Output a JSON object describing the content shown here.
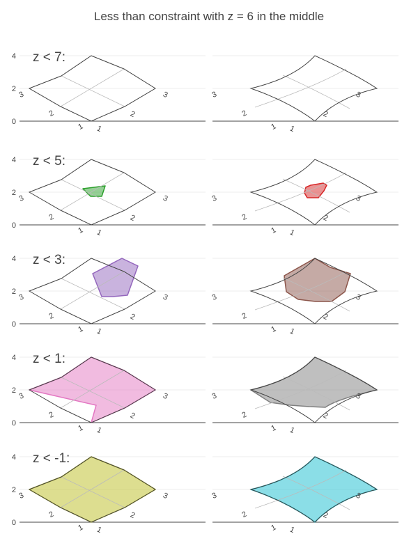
{
  "chart_data": {
    "type": "carpet-contour",
    "title": "Less than constraint with z = 6 in the middle",
    "yticks": [
      "0",
      "2",
      "4"
    ],
    "ylim": [
      0,
      4
    ],
    "grid": true,
    "axis_ticks": [
      "1",
      "2",
      "3"
    ],
    "columns": [
      "linear-carpet",
      "spline-carpet"
    ],
    "rows": [
      {
        "label": "z < 7:",
        "constraint": "<",
        "value": 7,
        "colors": {
          "left": {
            "fill": "",
            "line": ""
          },
          "right": {
            "fill": "",
            "line": ""
          }
        }
      },
      {
        "label": "z < 5:",
        "constraint": "<",
        "value": 5,
        "colors": {
          "left": {
            "fill": "#2ca02c",
            "line": "#2ca02c"
          },
          "right": {
            "fill": "#d62728",
            "line": "#d62728"
          }
        }
      },
      {
        "label": "z < 3:",
        "constraint": "<",
        "value": 3,
        "colors": {
          "left": {
            "fill": "#9467bd",
            "line": "#9467bd"
          },
          "right": {
            "fill": "#8c564b",
            "line": "#8c564b"
          }
        }
      },
      {
        "label": "z < 1:",
        "constraint": "<",
        "value": 1,
        "colors": {
          "left": {
            "fill": "#e377c2",
            "line": "#e377c2"
          },
          "right": {
            "fill": "#7f7f7f",
            "line": "#7f7f7f"
          }
        }
      },
      {
        "label": "z < -1:",
        "constraint": "<",
        "value": -1,
        "colors": {
          "left": {
            "fill": "#bcbd22",
            "line": "#bcbd22"
          },
          "right": {
            "fill": "#17becf",
            "line": "#17becf"
          }
        }
      }
    ]
  }
}
